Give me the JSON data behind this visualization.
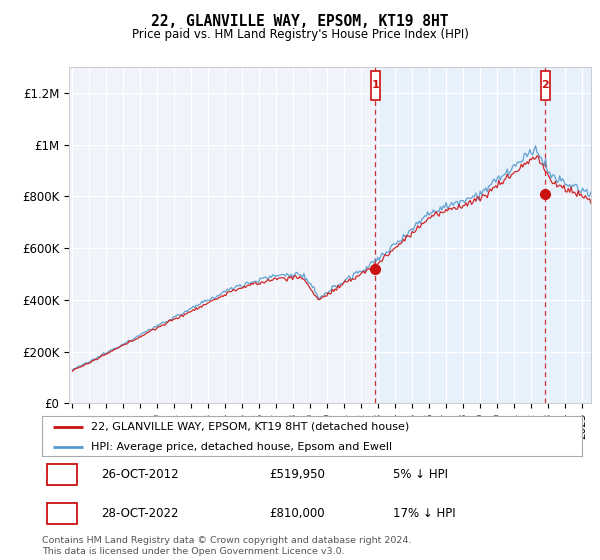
{
  "title": "22, GLANVILLE WAY, EPSOM, KT19 8HT",
  "subtitle": "Price paid vs. HM Land Registry's House Price Index (HPI)",
  "ylabel_ticks": [
    "£0",
    "£200K",
    "£400K",
    "£600K",
    "£800K",
    "£1M",
    "£1.2M"
  ],
  "ytick_values": [
    0,
    200000,
    400000,
    600000,
    800000,
    1000000,
    1200000
  ],
  "ylim": [
    0,
    1300000
  ],
  "xlim_start": 1994.8,
  "xlim_end": 2025.5,
  "hpi_color": "#5599cc",
  "price_color": "#cc1111",
  "marker1_x": 2012.82,
  "marker1_y": 519950,
  "marker2_x": 2022.82,
  "marker2_y": 810000,
  "marker1_label": "26-OCT-2012",
  "marker1_price": "£519,950",
  "marker1_pct": "5% ↓ HPI",
  "marker2_label": "28-OCT-2022",
  "marker2_price": "£810,000",
  "marker2_pct": "17% ↓ HPI",
  "legend_line1": "22, GLANVILLE WAY, EPSOM, KT19 8HT (detached house)",
  "legend_line2": "HPI: Average price, detached house, Epsom and Ewell",
  "footnote": "Contains HM Land Registry data © Crown copyright and database right 2024.\nThis data is licensed under the Open Government Licence v3.0.",
  "bg_fill_color": "#ddeeff",
  "bg_fill_alpha": 0.45,
  "chart_bg": "#f0f4fa"
}
